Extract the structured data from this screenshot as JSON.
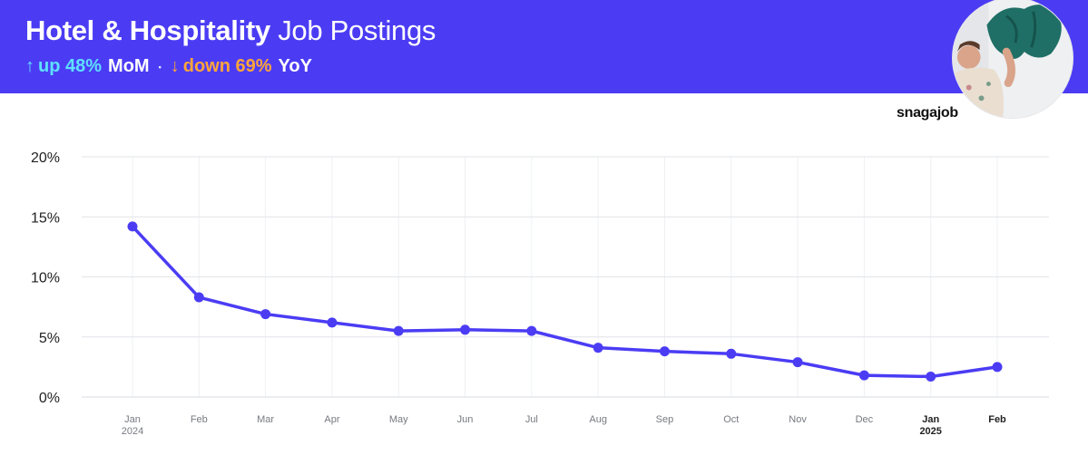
{
  "header": {
    "title_bold": "Hotel & Hospitality",
    "title_light": "Job Postings",
    "mom": {
      "arrow": "↑",
      "value": "up 48%",
      "label": "MoM"
    },
    "separator": "•",
    "yoy": {
      "arrow": "↓",
      "value": "down 69%",
      "label": "YoY"
    },
    "photo": "person-folding-laundry-photo"
  },
  "logo": "snagajob",
  "colors": {
    "header_bg": "#4b3cf4",
    "line": "#4b3cf4",
    "mom_accent": "#5fe0ff",
    "yoy_accent": "#ffa53a"
  },
  "chart_data": {
    "type": "line",
    "x": [
      "Jan",
      "Feb",
      "Mar",
      "Apr",
      "May",
      "Jun",
      "Jul",
      "Aug",
      "Sep",
      "Oct",
      "Nov",
      "Dec",
      "Jan",
      "Feb"
    ],
    "x_sublabels": [
      "2024",
      "",
      "",
      "",
      "",
      "",
      "",
      "",
      "",
      "",
      "",
      "",
      "2025",
      ""
    ],
    "bold_ticks": [
      12,
      13
    ],
    "series": [
      {
        "values": [
          14.2,
          8.3,
          6.9,
          6.2,
          5.5,
          5.6,
          5.5,
          4.1,
          3.8,
          3.6,
          2.9,
          1.8,
          1.7,
          2.5
        ]
      }
    ],
    "yticks": [
      0,
      5,
      10,
      15,
      20
    ],
    "ytick_labels": [
      "0%",
      "5%",
      "10%",
      "15%",
      "20%"
    ],
    "ylim": [
      0,
      20
    ],
    "grid": true,
    "title": "",
    "xlabel": "",
    "ylabel": ""
  }
}
